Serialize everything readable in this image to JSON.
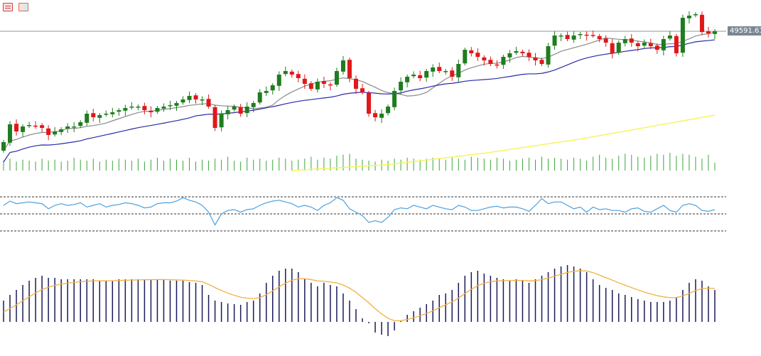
{
  "toolbar": {
    "icons": [
      "indicator-list-icon",
      "template-icon"
    ]
  },
  "last_price_label": "49591.61",
  "colors": {
    "up": "#1e7d1e",
    "down": "#e01818",
    "ma_fast": "#8a8a8a",
    "ma_slow": "#2a2aa8",
    "ma_long": "#f5f55a",
    "volume": "#3aa53a",
    "rsi": "#4aa0e0",
    "macd_hist": "#1a1a5a",
    "macd_signal": "#f0b040",
    "last_price_line": "#8a9a9a"
  },
  "chart_data": {
    "type": "candlestick",
    "title": "",
    "last_price": 49591.61,
    "price_range": [
      44642,
      50692
    ],
    "closes": [
      45692,
      46317,
      46067,
      46242,
      46292,
      46267,
      46192,
      45942,
      46067,
      46142,
      46242,
      46242,
      46392,
      46692,
      46567,
      46642,
      46692,
      46742,
      46817,
      46892,
      46942,
      46942,
      46817,
      46742,
      46892,
      46942,
      46992,
      47067,
      47192,
      47317,
      47192,
      47192,
      46942,
      46192,
      46692,
      46817,
      46942,
      46692,
      46942,
      47067,
      47442,
      47492,
      47692,
      48067,
      48192,
      48067,
      47942,
      47742,
      47567,
      47817,
      47742,
      47692,
      48192,
      48567,
      47942,
      47567,
      47442,
      46692,
      46567,
      46692,
      46942,
      47492,
      47817,
      47992,
      48067,
      47942,
      48192,
      48317,
      48192,
      48192,
      47992,
      48442,
      48942,
      48817,
      48692,
      48567,
      48442,
      48392,
      48692,
      48817,
      48892,
      48817,
      48692,
      48567,
      48442,
      49067,
      49442,
      49442,
      49317,
      49442,
      49492,
      49442,
      49442,
      49317,
      49192,
      48817,
      49192,
      49317,
      49192,
      49067,
      49192,
      49067,
      48942,
      49317,
      49442,
      48817,
      50067,
      50142,
      50192,
      49567,
      49517,
      49591.61
    ],
    "ma_fast_period": 10,
    "ma_slow_period": 30,
    "ma_long_points": [
      {
        "i": 45,
        "v": 44692
      },
      {
        "i": 60,
        "v": 44900
      },
      {
        "i": 75,
        "v": 45300
      },
      {
        "i": 90,
        "v": 45800
      },
      {
        "i": 100,
        "v": 46200
      },
      {
        "i": 111,
        "v": 46642
      }
    ],
    "volumes": [
      10,
      12,
      9,
      11,
      10,
      9,
      12,
      10,
      11,
      9,
      10,
      13,
      11,
      10,
      12,
      9,
      11,
      10,
      12,
      11,
      10,
      12,
      9,
      11,
      13,
      10,
      12,
      11,
      10,
      13,
      9,
      11,
      10,
      12,
      11,
      14,
      10,
      9,
      13,
      11,
      12,
      10,
      11,
      13,
      12,
      10,
      11,
      12,
      14,
      11,
      13,
      12,
      15,
      16,
      17,
      12,
      11,
      10,
      9,
      11,
      10,
      12,
      11,
      13,
      12,
      11,
      12,
      13,
      12,
      11,
      13,
      12,
      11,
      14,
      13,
      12,
      11,
      13,
      12,
      10,
      11,
      12,
      13,
      11,
      14,
      12,
      13,
      12,
      11,
      13,
      12,
      10,
      14,
      16,
      13,
      12,
      15,
      17,
      16,
      14,
      13,
      15,
      17,
      16,
      18,
      15,
      17,
      16,
      14,
      12,
      16,
      8
    ],
    "rsi": {
      "levels": [
        70,
        50,
        30
      ],
      "range": [
        30,
        70
      ],
      "values": [
        60,
        65,
        62,
        63,
        64,
        63,
        62,
        56,
        60,
        62,
        60,
        61,
        63,
        58,
        60,
        62,
        58,
        60,
        61,
        63,
        62,
        60,
        57,
        58,
        62,
        63,
        63,
        65,
        69,
        66,
        64,
        60,
        52,
        37,
        50,
        54,
        55,
        52,
        55,
        56,
        60,
        63,
        65,
        66,
        64,
        62,
        58,
        60,
        58,
        54,
        60,
        63,
        69,
        66,
        56,
        52,
        48,
        40,
        42,
        40,
        46,
        55,
        57,
        56,
        60,
        58,
        56,
        60,
        58,
        56,
        55,
        60,
        58,
        54,
        54,
        56,
        58,
        59,
        57,
        58,
        58,
        56,
        53,
        60,
        68,
        62,
        64,
        64,
        60,
        56,
        58,
        52,
        58,
        55,
        56,
        54,
        54,
        52,
        56,
        57,
        53,
        52,
        56,
        60,
        54,
        52,
        60,
        62,
        60,
        54,
        53,
        55
      ]
    },
    "macd": {
      "signal_period": 9,
      "histogram": [
        30,
        38,
        45,
        52,
        58,
        62,
        65,
        62,
        62,
        60,
        60,
        60,
        60,
        60,
        60,
        58,
        58,
        58,
        60,
        60,
        60,
        60,
        60,
        60,
        60,
        60,
        58,
        58,
        58,
        56,
        55,
        52,
        38,
        30,
        28,
        26,
        25,
        24,
        28,
        30,
        40,
        55,
        65,
        72,
        75,
        75,
        70,
        60,
        55,
        50,
        55,
        52,
        50,
        40,
        30,
        18,
        5,
        -2,
        -15,
        -18,
        -20,
        -12,
        2,
        10,
        15,
        20,
        25,
        30,
        38,
        40,
        45,
        55,
        65,
        70,
        72,
        68,
        65,
        62,
        60,
        58,
        60,
        58,
        55,
        60,
        65,
        70,
        75,
        78,
        80,
        78,
        75,
        70,
        60,
        52,
        48,
        45,
        40,
        38,
        35,
        32,
        30,
        28,
        28,
        28,
        30,
        35,
        45,
        55,
        60,
        58,
        50,
        45
      ]
    }
  }
}
